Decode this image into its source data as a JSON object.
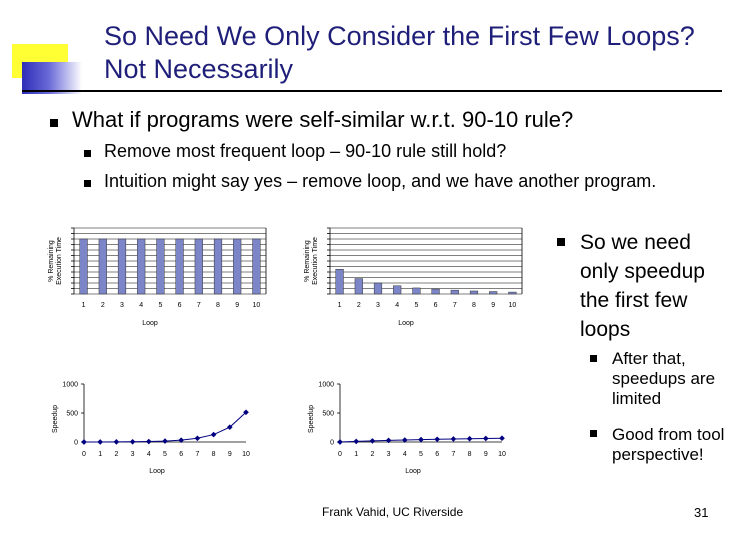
{
  "slide": {
    "title_line1": "So Need We Only Consider the First Few Loops?",
    "title_line2": "Not Necessarily",
    "bullet_main": "What if programs were self-similar w.r.t. 90-10 rule?",
    "sub_bullets": [
      "Remove most frequent loop – 90-10 rule still hold?",
      "Intuition might say yes – remove loop, and we have another program."
    ],
    "right_bullet": "So we need only speedup the first few loops",
    "right_sub_bullets": [
      "After that, speedups are limited",
      "Good from tool perspective!"
    ],
    "footer": "Frank Vahid, UC Riverside",
    "page_number": "31"
  },
  "chart_data": [
    {
      "type": "bar",
      "categories": [
        "1",
        "2",
        "3",
        "4",
        "5",
        "6",
        "7",
        "8",
        "9",
        "10"
      ],
      "values": [
        10,
        10,
        10,
        10,
        10,
        10,
        10,
        10,
        10,
        10
      ],
      "xlabel": "Loop",
      "ylabel_line1": "% Remaining",
      "ylabel_line2": "Execution Time",
      "ylim": [
        0,
        12
      ]
    },
    {
      "type": "bar",
      "categories": [
        "1",
        "2",
        "3",
        "4",
        "5",
        "6",
        "7",
        "8",
        "9",
        "10"
      ],
      "values": [
        4.5,
        2.8,
        2.0,
        1.5,
        1.1,
        0.9,
        0.7,
        0.55,
        0.45,
        0.35
      ],
      "xlabel": "Loop",
      "ylabel_line1": "% Remaining",
      "ylabel_line2": "Execution Time",
      "ylim": [
        0,
        12
      ]
    },
    {
      "type": "line",
      "x": [
        "0",
        "1",
        "2",
        "3",
        "4",
        "5",
        "6",
        "7",
        "8",
        "9",
        "10"
      ],
      "values": [
        0,
        1,
        2,
        4,
        8,
        16,
        32,
        64,
        128,
        256,
        512
      ],
      "xlabel": "Loop",
      "ylabel": "Speedup",
      "yticks": [
        "0",
        "500",
        "1000"
      ],
      "ylim": [
        0,
        1000
      ]
    },
    {
      "type": "line",
      "x": [
        "0",
        "1",
        "2",
        "3",
        "4",
        "5",
        "6",
        "7",
        "8",
        "9",
        "10"
      ],
      "values": [
        0,
        10,
        19,
        27,
        34,
        41,
        47,
        52,
        57,
        61,
        65
      ],
      "xlabel": "Loop",
      "ylabel": "Speedup",
      "yticks": [
        "0",
        "500",
        "1000"
      ],
      "ylim": [
        0,
        1000
      ]
    }
  ],
  "colors": {
    "title": "#1f1f7a",
    "bar_fill": "#7b85c8",
    "line": "#000080",
    "grid": "#000000"
  }
}
